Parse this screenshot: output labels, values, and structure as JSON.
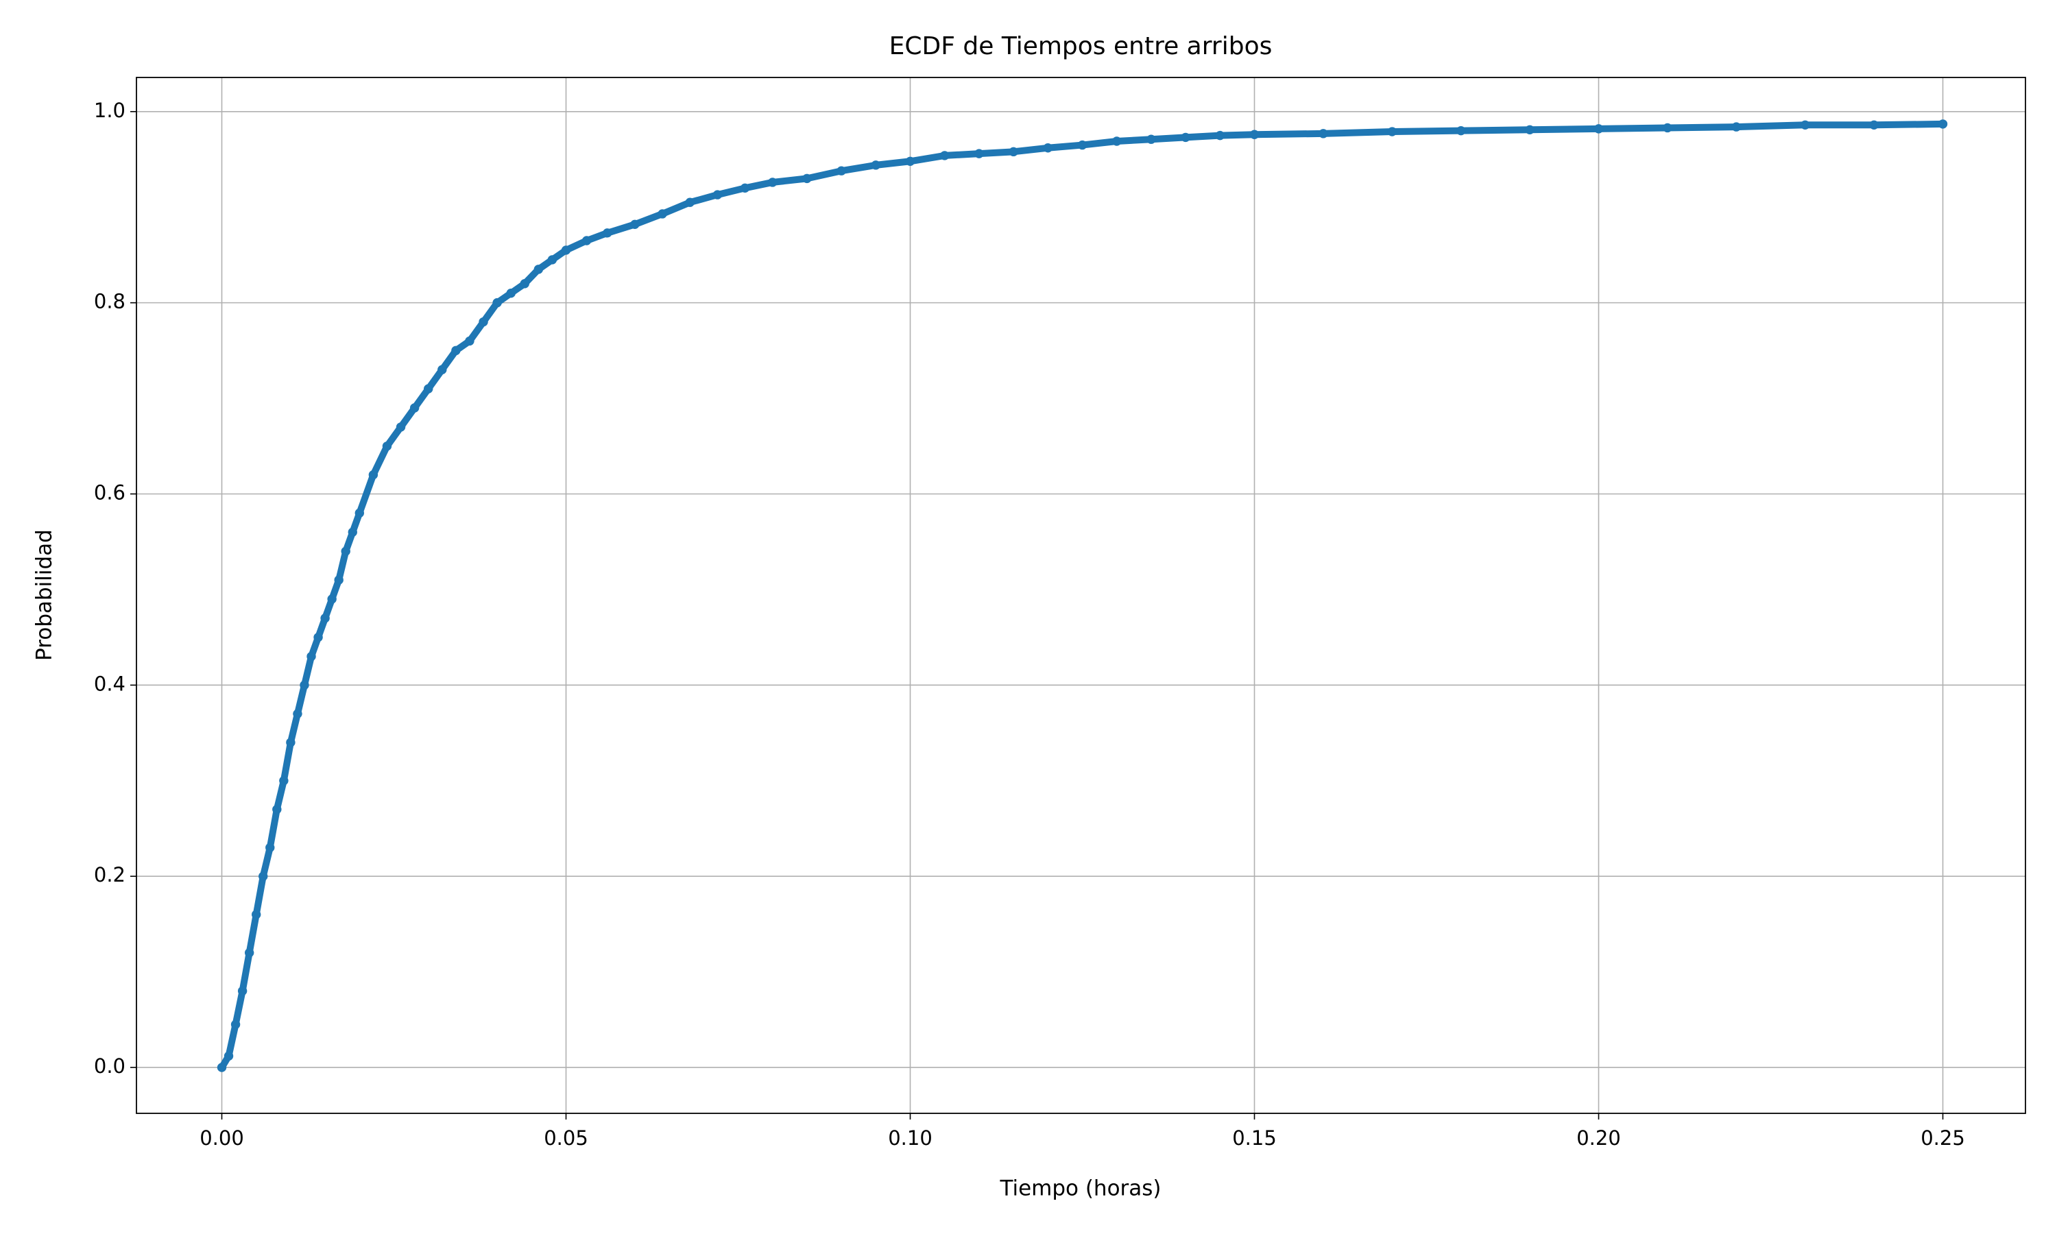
{
  "chart_data": {
    "type": "scatter",
    "title": "ECDF de Tiempos entre arribos",
    "xlabel": "Tiempo (horas)",
    "ylabel": "Probabilidad",
    "color": "#1f77b4",
    "grid": true,
    "xlim": [
      -0.0124,
      0.262
    ],
    "ylim": [
      -0.048,
      1.0357
    ],
    "xticks": [
      {
        "value": 0,
        "label": "0.00"
      },
      {
        "value": 0.05,
        "label": "0.05"
      },
      {
        "value": 0.1,
        "label": "0.10"
      },
      {
        "value": 0.15,
        "label": "0.15"
      },
      {
        "value": 0.2,
        "label": "0.20"
      },
      {
        "value": 0.25,
        "label": "0.25"
      }
    ],
    "yticks": [
      {
        "value": 0,
        "label": "0.0"
      },
      {
        "value": 0.2,
        "label": "0.2"
      },
      {
        "value": 0.4,
        "label": "0.4"
      },
      {
        "value": 0.6,
        "label": "0.6"
      },
      {
        "value": 0.8,
        "label": "0.8"
      },
      {
        "value": 1,
        "label": "1.0"
      }
    ],
    "x": [
      0,
      0.001,
      0.002,
      0.003,
      0.004,
      0.005,
      0.006,
      0.007,
      0.008,
      0.009,
      0.01,
      0.011,
      0.012,
      0.013,
      0.014,
      0.015,
      0.016,
      0.017,
      0.018,
      0.019,
      0.02,
      0.022,
      0.024,
      0.026,
      0.028,
      0.03,
      0.032,
      0.034,
      0.036,
      0.038,
      0.04,
      0.042,
      0.044,
      0.046,
      0.048,
      0.05,
      0.053,
      0.056,
      0.06,
      0.064,
      0.068,
      0.072,
      0.076,
      0.08,
      0.085,
      0.09,
      0.095,
      0.1,
      0.105,
      0.11,
      0.115,
      0.12,
      0.125,
      0.13,
      0.135,
      0.14,
      0.145,
      0.15,
      0.16,
      0.17,
      0.18,
      0.19,
      0.2,
      0.21,
      0.22,
      0.23,
      0.24,
      0.25
    ],
    "values": [
      0,
      0.012,
      0.045,
      0.08,
      0.12,
      0.16,
      0.2,
      0.23,
      0.27,
      0.3,
      0.34,
      0.37,
      0.4,
      0.43,
      0.45,
      0.47,
      0.49,
      0.51,
      0.54,
      0.56,
      0.58,
      0.62,
      0.65,
      0.67,
      0.69,
      0.71,
      0.73,
      0.75,
      0.76,
      0.78,
      0.8,
      0.81,
      0.82,
      0.835,
      0.845,
      0.855,
      0.865,
      0.873,
      0.882,
      0.893,
      0.905,
      0.913,
      0.92,
      0.926,
      0.93,
      0.938,
      0.944,
      0.948,
      0.954,
      0.956,
      0.958,
      0.962,
      0.965,
      0.969,
      0.971,
      0.973,
      0.975,
      0.976,
      0.977,
      0.979,
      0.98,
      0.981,
      0.982,
      0.983,
      0.984,
      0.986,
      0.986,
      0.987
    ]
  }
}
